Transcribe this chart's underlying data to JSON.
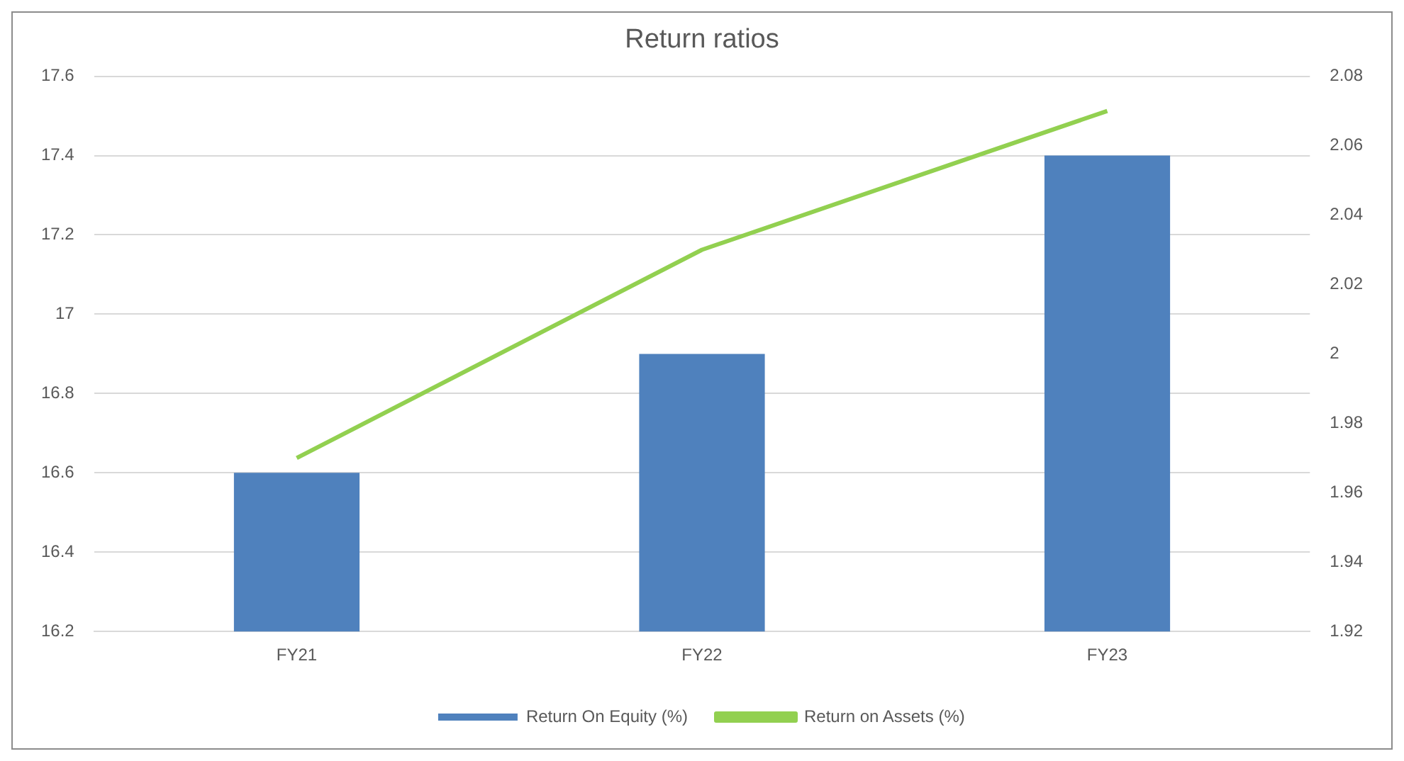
{
  "chart_data": {
    "type": "bar",
    "title": "Return ratios",
    "categories": [
      "FY21",
      "FY22",
      "FY23"
    ],
    "series": [
      {
        "name": "Return On Equity (%)",
        "color": "#4f81bd",
        "values": [
          16.6,
          16.9,
          17.4
        ]
      },
      {
        "name": "Return on Assets (%)",
        "type": "line",
        "axis": "y2",
        "color": "#92d050",
        "values": [
          1.97,
          2.03,
          2.07
        ]
      }
    ],
    "ylim": [
      16.2,
      17.6
    ],
    "yticks": [
      16.2,
      16.4,
      16.6,
      16.8,
      17,
      17.2,
      17.4,
      17.6
    ],
    "y2lim": [
      1.92,
      2.08
    ],
    "y2ticks": [
      1.92,
      1.94,
      1.96,
      1.98,
      2,
      2.02,
      2.04,
      2.06,
      2.08
    ],
    "grid": "y",
    "legend": "bottom",
    "marker": "none"
  }
}
